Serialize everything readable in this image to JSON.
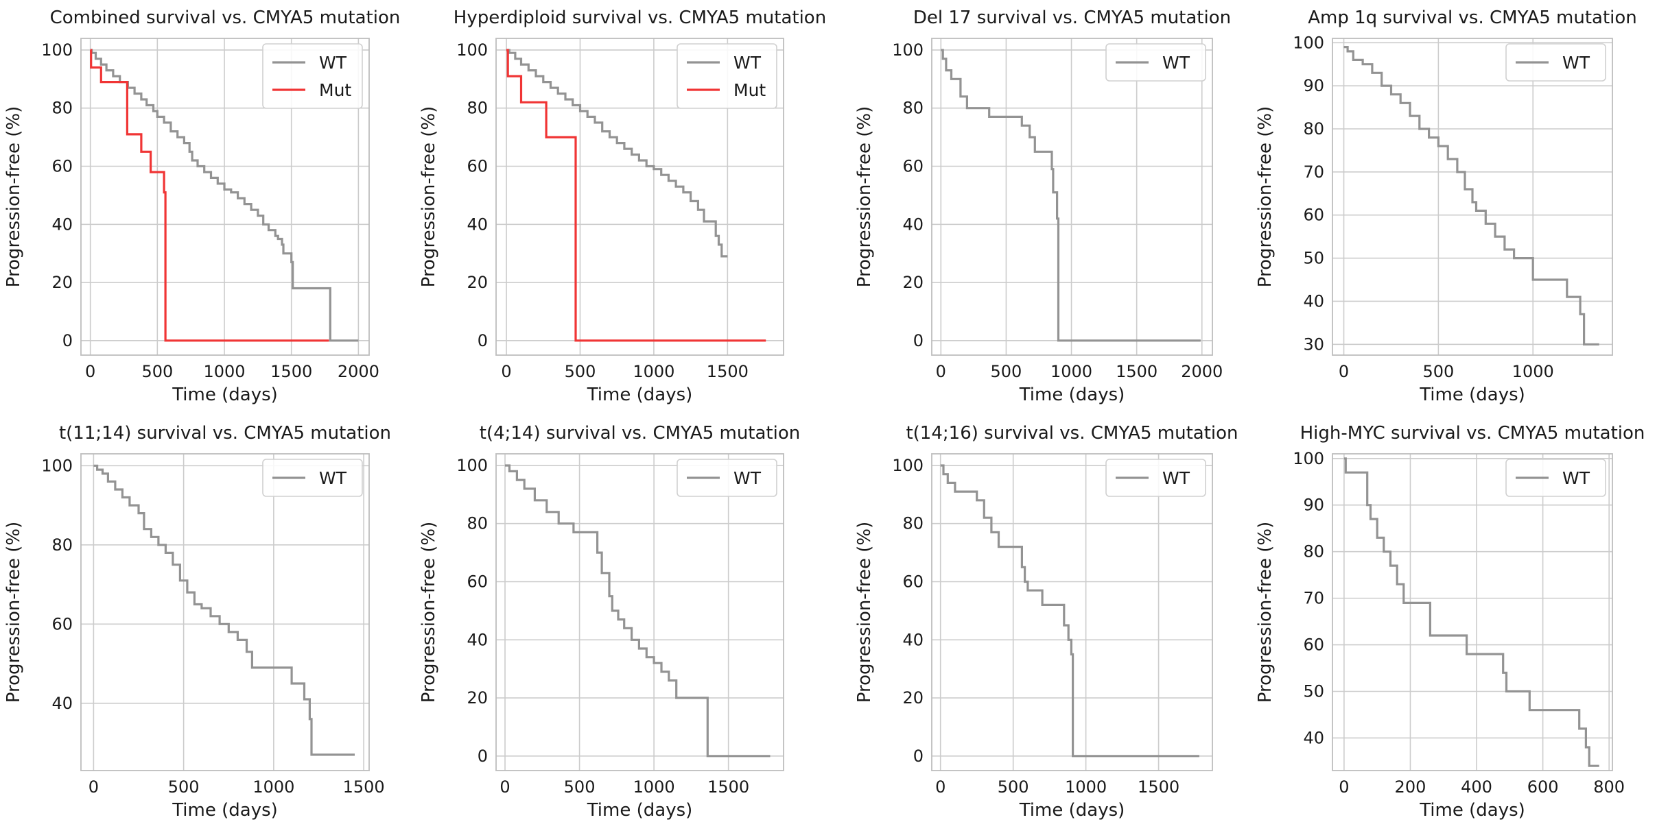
{
  "colors": {
    "wt": "#939393",
    "mut": "#f03535",
    "grid": "#cccccc",
    "frame": "#bdbdbd"
  },
  "chart_data": [
    {
      "type": "line",
      "title": "Combined survival vs. CMYA5 mutation",
      "xlabel": "Time (days)",
      "ylabel": "Progression-free (%)",
      "xlim": [
        -70,
        2080
      ],
      "ylim": [
        -5,
        104
      ],
      "xticks": [
        0,
        500,
        1000,
        1500,
        2000
      ],
      "yticks": [
        0,
        20,
        40,
        60,
        80,
        100
      ],
      "legend": "top-right",
      "grid": true,
      "series": [
        {
          "name": "WT",
          "color": "#939393",
          "x": [
            0,
            10,
            40,
            80,
            120,
            170,
            220,
            280,
            330,
            380,
            420,
            470,
            500,
            550,
            600,
            650,
            700,
            740,
            760,
            800,
            850,
            900,
            950,
            1000,
            1050,
            1100,
            1150,
            1200,
            1250,
            1290,
            1330,
            1380,
            1400,
            1430,
            1440,
            1500,
            1510,
            1780,
            1790,
            2000
          ],
          "y": [
            100,
            99,
            97,
            95,
            93,
            91,
            89,
            87,
            85,
            83,
            81,
            79,
            77,
            75,
            72,
            70,
            68,
            65,
            62,
            60,
            58,
            56,
            54,
            52,
            51,
            49,
            47,
            45,
            43,
            40,
            38,
            36,
            35,
            33,
            30,
            27,
            18,
            18,
            0,
            0
          ]
        },
        {
          "name": "Mut",
          "color": "#f03535",
          "x": [
            0,
            5,
            80,
            270,
            275,
            370,
            380,
            450,
            460,
            550,
            560,
            1780
          ],
          "y": [
            100,
            94,
            89,
            89,
            71,
            71,
            65,
            58,
            58,
            51,
            0,
            0
          ]
        }
      ]
    },
    {
      "type": "line",
      "title": "Hyperdiploid survival vs. CMYA5 mutation",
      "xlabel": "Time (days)",
      "ylabel": "Progression-free (%)",
      "xlim": [
        -70,
        1880
      ],
      "ylim": [
        -5,
        104
      ],
      "xticks": [
        0,
        500,
        1000,
        1500
      ],
      "yticks": [
        0,
        20,
        40,
        60,
        80,
        100
      ],
      "legend": "top-right",
      "grid": true,
      "series": [
        {
          "name": "WT",
          "color": "#939393",
          "x": [
            0,
            20,
            60,
            100,
            150,
            200,
            250,
            300,
            350,
            400,
            450,
            500,
            550,
            600,
            650,
            700,
            750,
            800,
            850,
            900,
            950,
            1000,
            1050,
            1100,
            1150,
            1200,
            1250,
            1300,
            1340,
            1350,
            1420,
            1440,
            1460,
            1500
          ],
          "y": [
            100,
            99,
            97,
            95,
            93,
            91,
            89,
            87,
            85,
            83,
            81,
            79,
            77,
            75,
            72,
            70,
            68,
            66,
            64,
            62,
            60,
            59,
            57,
            55,
            53,
            51,
            48,
            45,
            41,
            41,
            36,
            33,
            29,
            29
          ]
        },
        {
          "name": "Mut",
          "color": "#f03535",
          "x": [
            0,
            10,
            100,
            260,
            270,
            460,
            470,
            1760
          ],
          "y": [
            100,
            91,
            82,
            82,
            70,
            70,
            0,
            0
          ]
        }
      ]
    },
    {
      "type": "line",
      "title": "Del 17 survival vs. CMYA5 mutation",
      "xlabel": "Time (days)",
      "ylabel": "Progression-free (%)",
      "xlim": [
        -70,
        2080
      ],
      "ylim": [
        -5,
        104
      ],
      "xticks": [
        0,
        500,
        1000,
        1500,
        2000
      ],
      "yticks": [
        0,
        20,
        40,
        60,
        80,
        100
      ],
      "legend": "top-right",
      "grid": true,
      "series": [
        {
          "name": "WT",
          "color": "#939393",
          "x": [
            0,
            15,
            40,
            80,
            150,
            200,
            370,
            600,
            620,
            680,
            720,
            850,
            860,
            890,
            900,
            910,
            1990
          ],
          "y": [
            100,
            97,
            93,
            90,
            84,
            80,
            77,
            77,
            74,
            70,
            65,
            59,
            51,
            42,
            0,
            0,
            0
          ]
        }
      ]
    },
    {
      "type": "line",
      "title": "Amp 1q survival vs. CMYA5 mutation",
      "xlabel": "Time (days)",
      "ylabel": "Progression-free (%)",
      "xlim": [
        -60,
        1420
      ],
      "ylim": [
        27.5,
        101
      ],
      "xticks": [
        0,
        500,
        1000
      ],
      "yticks": [
        30,
        40,
        50,
        60,
        70,
        80,
        90,
        100
      ],
      "legend": "top-right",
      "grid": true,
      "series": [
        {
          "name": "WT",
          "color": "#939393",
          "x": [
            0,
            20,
            50,
            100,
            150,
            200,
            250,
            300,
            350,
            400,
            450,
            500,
            550,
            600,
            640,
            680,
            700,
            750,
            800,
            850,
            900,
            1000,
            1100,
            1180,
            1250,
            1270,
            1350
          ],
          "y": [
            99,
            98,
            96,
            95,
            93,
            90,
            88,
            86,
            83,
            80,
            78,
            76,
            73,
            70,
            66,
            63,
            61,
            58,
            55,
            52,
            50,
            45,
            45,
            41,
            37,
            30,
            30
          ]
        }
      ]
    },
    {
      "type": "line",
      "title": "t(11;14) survival vs. CMYA5 mutation",
      "xlabel": "Time (days)",
      "ylabel": "Progression-free (%)",
      "xlim": [
        -70,
        1530
      ],
      "ylim": [
        23,
        103
      ],
      "xticks": [
        0,
        500,
        1000,
        1500
      ],
      "yticks": [
        40,
        60,
        80,
        100
      ],
      "legend": "top-right",
      "grid": true,
      "series": [
        {
          "name": "WT",
          "color": "#939393",
          "x": [
            0,
            20,
            50,
            80,
            120,
            160,
            200,
            250,
            280,
            320,
            360,
            400,
            440,
            480,
            520,
            560,
            600,
            650,
            700,
            750,
            800,
            850,
            880,
            1050,
            1100,
            1170,
            1200,
            1210,
            1450
          ],
          "y": [
            100,
            99,
            98,
            96,
            94,
            92,
            90,
            88,
            84,
            82,
            80,
            78,
            75,
            71,
            68,
            65,
            64,
            62,
            60,
            58,
            56,
            53,
            49,
            49,
            45,
            41,
            36,
            27,
            27
          ]
        }
      ]
    },
    {
      "type": "line",
      "title": "t(4;14) survival vs. CMYA5 mutation",
      "xlabel": "Time (days)",
      "ylabel": "Progression-free (%)",
      "xlim": [
        -60,
        1870
      ],
      "ylim": [
        -5,
        104
      ],
      "xticks": [
        0,
        500,
        1000,
        1500
      ],
      "yticks": [
        0,
        20,
        40,
        60,
        80,
        100
      ],
      "legend": "top-right",
      "grid": true,
      "series": [
        {
          "name": "WT",
          "color": "#939393",
          "x": [
            0,
            30,
            80,
            130,
            200,
            280,
            360,
            460,
            600,
            620,
            650,
            700,
            720,
            760,
            800,
            850,
            900,
            950,
            1000,
            1050,
            1100,
            1150,
            1350,
            1360,
            1780
          ],
          "y": [
            100,
            98,
            95,
            92,
            88,
            84,
            80,
            77,
            77,
            70,
            63,
            55,
            50,
            47,
            44,
            40,
            37,
            34,
            32,
            29,
            26,
            20,
            20,
            0,
            0
          ]
        }
      ]
    },
    {
      "type": "line",
      "title": "t(14;16) survival vs. CMYA5 mutation",
      "xlabel": "Time (days)",
      "ylabel": "Progression-free (%)",
      "xlim": [
        -60,
        1870
      ],
      "ylim": [
        -5,
        104
      ],
      "xticks": [
        0,
        500,
        1000,
        1500
      ],
      "yticks": [
        0,
        20,
        40,
        60,
        80,
        100
      ],
      "legend": "top-right",
      "grid": true,
      "series": [
        {
          "name": "WT",
          "color": "#939393",
          "x": [
            0,
            20,
            50,
            100,
            250,
            300,
            350,
            400,
            530,
            560,
            580,
            600,
            700,
            850,
            880,
            900,
            910,
            920,
            1780
          ],
          "y": [
            100,
            97,
            94,
            91,
            88,
            82,
            77,
            72,
            72,
            65,
            60,
            57,
            52,
            45,
            40,
            35,
            0,
            0,
            0
          ]
        }
      ]
    },
    {
      "type": "line",
      "title": "High-MYC survival vs. CMYA5 mutation",
      "xlabel": "Time (days)",
      "ylabel": "Progression-free (%)",
      "xlim": [
        -35,
        810
      ],
      "ylim": [
        33,
        101
      ],
      "xticks": [
        0,
        200,
        400,
        600,
        800
      ],
      "yticks": [
        40,
        50,
        60,
        70,
        80,
        90,
        100
      ],
      "legend": "top-right",
      "grid": true,
      "series": [
        {
          "name": "WT",
          "color": "#939393",
          "x": [
            0,
            5,
            60,
            70,
            80,
            100,
            120,
            140,
            160,
            180,
            250,
            260,
            370,
            480,
            490,
            560,
            710,
            730,
            740,
            770
          ],
          "y": [
            100,
            97,
            97,
            90,
            87,
            83,
            80,
            77,
            73,
            69,
            69,
            62,
            58,
            54,
            50,
            46,
            42,
            38,
            34,
            34
          ]
        }
      ]
    }
  ]
}
